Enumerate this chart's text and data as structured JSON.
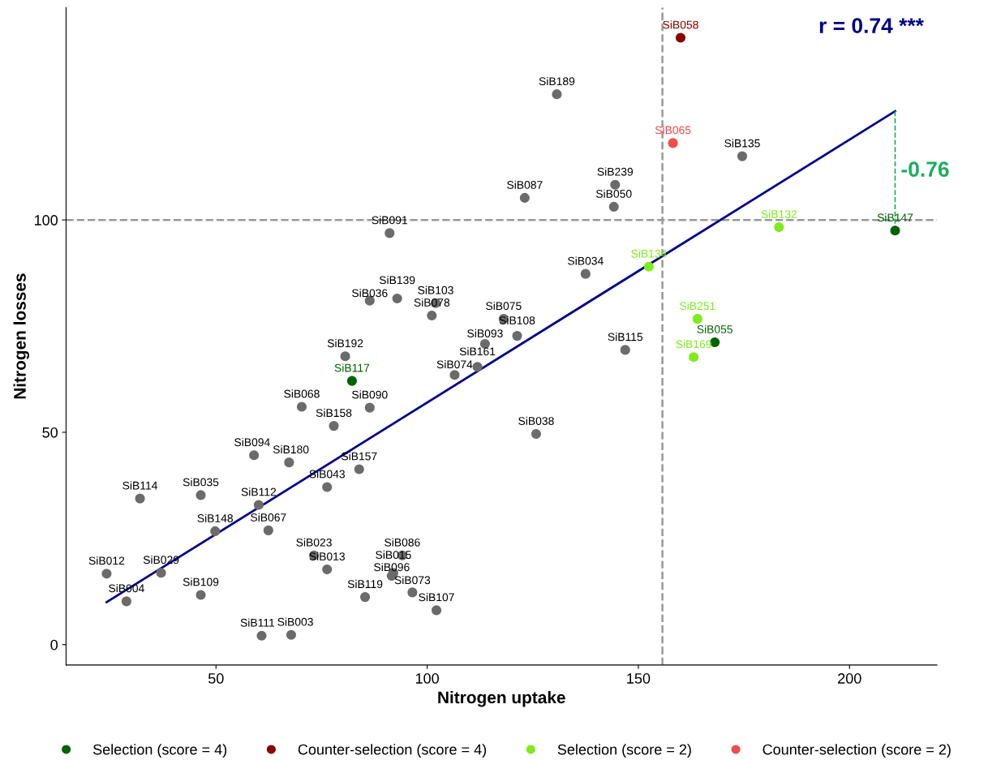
{
  "chart_data": {
    "type": "scatter",
    "xlabel": "Nitrogen uptake",
    "ylabel": "Nitrogen losses",
    "xlim": [
      14.5,
      220.7
    ],
    "ylim": [
      -4.8,
      150
    ],
    "xticks": [
      50,
      100,
      150,
      200
    ],
    "yticks": [
      0,
      50,
      100
    ],
    "grid": false,
    "legend": "bottom",
    "marker": "circle",
    "series": [
      {
        "type": "line",
        "color": "#00008b",
        "line_style": "solid",
        "marker": "none",
        "x": [
          24.1,
          210.8
        ],
        "values": [
          10.0,
          125.6
        ]
      },
      {
        "type": "line",
        "color": "#1aae5b",
        "line_style": "dashed",
        "marker": "none",
        "x": [
          210.8,
          210.8
        ],
        "values": [
          125.6,
          97.5
        ]
      },
      {
        "color": "#6b6b6b",
        "x": [
          130.7,
          174.6,
          144.5,
          123.1,
          144.2,
          91.1,
          137.5,
          86.4,
          92.9,
          102.0,
          101.1,
          118.1,
          121.3,
          113.7,
          146.9,
          111.9,
          106.5,
          80.6,
          70.3,
          86.4,
          77.9,
          125.8,
          59.0,
          67.3,
          83.9,
          76.3,
          32.0,
          46.4,
          60.1,
          49.8,
          62.4,
          73.2,
          76.3,
          94.1,
          92.0,
          91.6,
          24.1,
          37.0,
          28.8,
          46.4,
          85.3,
          96.5,
          102.2,
          60.8,
          67.8
        ],
        "values": [
          129.6,
          115.0,
          108.3,
          105.2,
          103.1,
          96.9,
          87.3,
          81.0,
          81.5,
          80.4,
          77.5,
          76.7,
          72.7,
          70.8,
          69.4,
          65.4,
          63.5,
          67.9,
          56.0,
          55.8,
          51.5,
          49.6,
          44.6,
          42.9,
          41.3,
          37.1,
          34.4,
          35.2,
          32.9,
          26.7,
          26.9,
          21.0,
          17.7,
          21.0,
          16.9,
          16.2,
          16.7,
          16.9,
          10.2,
          11.7,
          11.2,
          12.3,
          8.1,
          2.1,
          2.3
        ]
      },
      {
        "name": "Selection (score = 4)",
        "color": "#006400",
        "x": [
          210.8,
          168.1,
          82.2
        ],
        "values": [
          97.5,
          71.2,
          62.1
        ]
      },
      {
        "name": "Counter-selection (score = 4)",
        "color": "#8b0000",
        "x": [
          160.0
        ],
        "values": [
          142.9
        ]
      },
      {
        "name": "Selection (score = 2)",
        "color": "#7cec1c",
        "x": [
          183.3,
          152.5,
          164.0,
          163.1
        ],
        "values": [
          98.3,
          89.0,
          76.7,
          67.7
        ]
      },
      {
        "name": "Counter-selection (score = 2)",
        "color": "#f44a4a",
        "x": [
          158.2
        ],
        "values": [
          118.1
        ]
      }
    ],
    "ref_lines": [
      {
        "axis": "x",
        "value": 155.7,
        "color": "#999999",
        "line_style": "dashed"
      },
      {
        "axis": "y",
        "value": 100,
        "color": "#999999",
        "line_style": "dashed"
      }
    ],
    "annotations": [
      "r = 0.74 ***",
      {
        "text": "-0.76",
        "x": 210.8,
        "y": 111.5
      },
      {
        "text": "SiB189",
        "x": 130.7,
        "y": 129.6
      },
      {
        "text": "SiB135",
        "x": 174.6,
        "y": 115.0
      },
      {
        "text": "SiB239",
        "x": 144.5,
        "y": 108.3
      },
      {
        "text": "SiB087",
        "x": 123.1,
        "y": 105.2
      },
      {
        "text": "SiB050",
        "x": 144.2,
        "y": 103.1
      },
      {
        "text": "SiB091",
        "x": 91.1,
        "y": 96.9
      },
      {
        "text": "SiB034",
        "x": 137.5,
        "y": 87.3
      },
      {
        "text": "SiB036",
        "x": 86.4,
        "y": 81.0
      },
      {
        "text": "SiB139",
        "x": 92.9,
        "y": 81.5
      },
      {
        "text": "SiB103",
        "x": 102.0,
        "y": 80.4
      },
      {
        "text": "SiB078",
        "x": 101.1,
        "y": 77.5
      },
      {
        "text": "SiB075",
        "x": 118.1,
        "y": 76.7
      },
      {
        "text": "SiB108",
        "x": 121.3,
        "y": 72.7
      },
      {
        "text": "SiB093",
        "x": 113.7,
        "y": 70.8
      },
      {
        "text": "SiB115",
        "x": 146.9,
        "y": 69.4
      },
      {
        "text": "SiB161",
        "x": 111.9,
        "y": 65.4
      },
      {
        "text": "SiB074",
        "x": 106.5,
        "y": 63.5
      },
      {
        "text": "SiB192",
        "x": 80.6,
        "y": 67.9
      },
      {
        "text": "SiB068",
        "x": 70.3,
        "y": 56.0
      },
      {
        "text": "SiB090",
        "x": 86.4,
        "y": 55.8
      },
      {
        "text": "SiB158",
        "x": 77.9,
        "y": 51.5
      },
      {
        "text": "SiB038",
        "x": 125.8,
        "y": 49.6
      },
      {
        "text": "SiB094",
        "x": 59.0,
        "y": 44.6
      },
      {
        "text": "SiB180",
        "x": 67.3,
        "y": 42.9
      },
      {
        "text": "SiB157",
        "x": 83.9,
        "y": 41.3
      },
      {
        "text": "SiB043",
        "x": 76.3,
        "y": 37.1
      },
      {
        "text": "SiB114",
        "x": 32.0,
        "y": 34.4
      },
      {
        "text": "SiB035",
        "x": 46.4,
        "y": 35.2
      },
      {
        "text": "SiB112",
        "x": 60.1,
        "y": 32.9
      },
      {
        "text": "SiB148",
        "x": 49.8,
        "y": 26.7
      },
      {
        "text": "SiB067",
        "x": 62.4,
        "y": 26.9
      },
      {
        "text": "SiB023",
        "x": 73.2,
        "y": 21.0
      },
      {
        "text": "SiB013",
        "x": 76.3,
        "y": 17.7
      },
      {
        "text": "SiB086",
        "x": 94.1,
        "y": 21.0
      },
      {
        "text": "SiB015",
        "x": 92.0,
        "y": 16.9
      },
      {
        "text": "SiB096",
        "x": 91.6,
        "y": 16.2
      },
      {
        "text": "SiB012",
        "x": 24.1,
        "y": 16.7
      },
      {
        "text": "SiB029",
        "x": 37.0,
        "y": 16.9
      },
      {
        "text": "SiB004",
        "x": 28.8,
        "y": 10.2
      },
      {
        "text": "SiB109",
        "x": 46.4,
        "y": 11.7
      },
      {
        "text": "SiB119",
        "x": 85.3,
        "y": 11.2
      },
      {
        "text": "SiB073",
        "x": 96.5,
        "y": 12.3
      },
      {
        "text": "SiB107",
        "x": 102.2,
        "y": 8.1
      },
      {
        "text": "SiB111",
        "x": 60.8,
        "y": 2.1
      },
      {
        "text": "SiB003",
        "x": 67.8,
        "y": 2.3
      },
      {
        "text": "SiB147",
        "x": 210.8,
        "y": 97.5
      },
      {
        "text": "SiB055",
        "x": 168.1,
        "y": 71.2
      },
      {
        "text": "SiB117",
        "x": 82.2,
        "y": 62.1
      },
      {
        "text": "SiB058",
        "x": 160.0,
        "y": 142.9
      },
      {
        "text": "SiB132",
        "x": 183.3,
        "y": 98.3
      },
      {
        "text": "SiB134",
        "x": 152.5,
        "y": 89.0
      },
      {
        "text": "SiB251",
        "x": 164.0,
        "y": 76.7
      },
      {
        "text": "SiB169",
        "x": 163.1,
        "y": 67.7
      },
      {
        "text": "SiB065",
        "x": 158.2,
        "y": 118.1
      }
    ]
  }
}
